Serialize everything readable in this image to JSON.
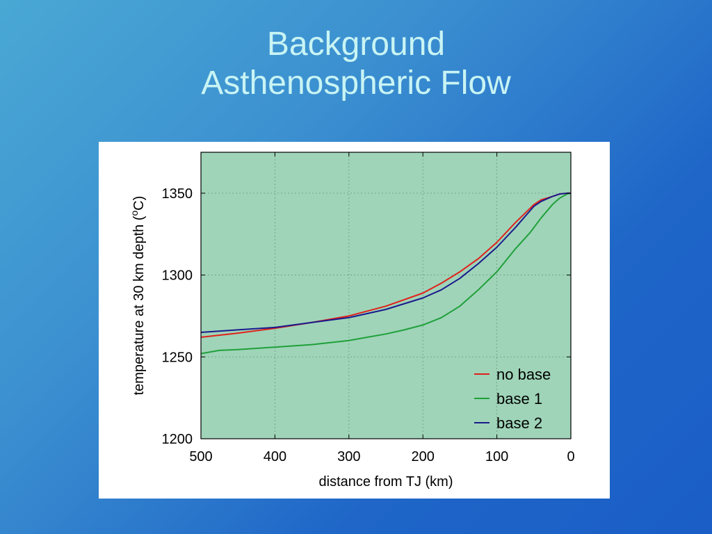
{
  "slide": {
    "title_line1": "Background",
    "title_line2": "Asthenospheric Flow"
  },
  "colors": {
    "plot_bg": "#9fd4b8",
    "no_base": "#e0201a",
    "base_1": "#1fa03a",
    "base_2": "#1a1a8c"
  },
  "chart_data": {
    "type": "line",
    "title": "",
    "xlabel": "distance from TJ (km)",
    "ylabel_prefix": "temperature at 30 km depth (",
    "ylabel_sup": "o",
    "ylabel_suffix": "C)",
    "xlim": [
      500,
      0
    ],
    "ylim": [
      1200,
      1375
    ],
    "x_reversed": true,
    "xticks": [
      500,
      400,
      300,
      200,
      100,
      0
    ],
    "xtick_labels": [
      "500",
      "400",
      "300",
      "200",
      "100",
      "0"
    ],
    "yticks": [
      1200,
      1250,
      1300,
      1350
    ],
    "ytick_labels": [
      "1200",
      "1250",
      "1300",
      "1350"
    ],
    "grid": true,
    "legend_position": "bottom-right",
    "series": [
      {
        "name": "no base",
        "color_key": "no_base",
        "x": [
          500,
          450,
          400,
          350,
          300,
          250,
          200,
          175,
          150,
          125,
          100,
          75,
          50,
          40,
          25,
          15,
          5,
          0
        ],
        "y": [
          1262,
          1264.5,
          1267.5,
          1271,
          1275,
          1281,
          1289,
          1295,
          1302,
          1310,
          1320,
          1332,
          1343,
          1346,
          1348,
          1349.5,
          1350,
          1350
        ]
      },
      {
        "name": "base 1",
        "color_key": "base_1",
        "x": [
          500,
          475,
          450,
          400,
          350,
          300,
          275,
          250,
          225,
          200,
          175,
          150,
          125,
          100,
          75,
          55,
          40,
          25,
          15,
          5,
          0
        ],
        "y": [
          1252,
          1254,
          1254.5,
          1256,
          1257.5,
          1260,
          1262,
          1264,
          1266.5,
          1269.5,
          1274,
          1281,
          1291,
          1302,
          1316,
          1326,
          1335,
          1343,
          1347,
          1349.5,
          1350
        ]
      },
      {
        "name": "base 2",
        "color_key": "base_2",
        "x": [
          500,
          450,
          400,
          350,
          300,
          250,
          200,
          175,
          150,
          125,
          100,
          75,
          50,
          40,
          25,
          15,
          5,
          0
        ],
        "y": [
          1265,
          1266.5,
          1268,
          1271,
          1274,
          1279,
          1286,
          1291,
          1298,
          1307,
          1317,
          1329,
          1342,
          1345,
          1348,
          1349.5,
          1350,
          1350
        ]
      }
    ]
  }
}
